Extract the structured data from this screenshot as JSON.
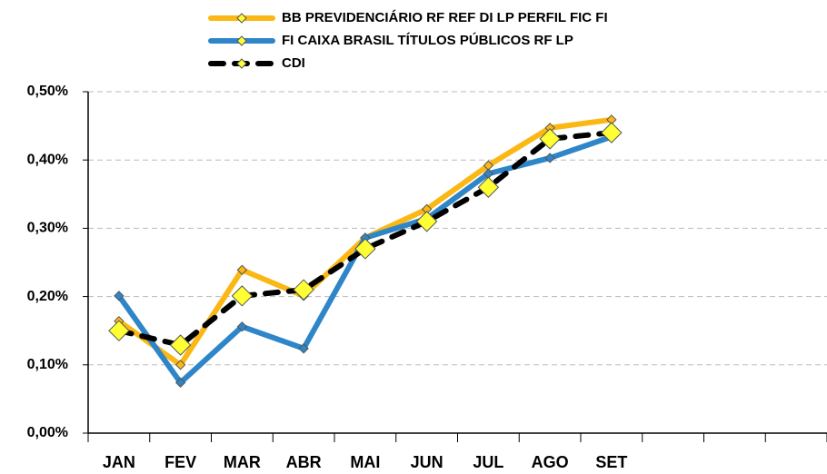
{
  "chart_data": {
    "type": "line",
    "categories": [
      "JAN",
      "FEV",
      "MAR",
      "ABR",
      "MAI",
      "JUN",
      "JUL",
      "AGO",
      "SET",
      null,
      null,
      null
    ],
    "series": [
      {
        "name": "BB PREVIDENCIÁRIO RF REF DI LP PERFIL FIC FI",
        "color": "#fbb714",
        "marker_color": "#fbb714",
        "marker_size": "small",
        "dashed": false,
        "values": [
          0.164,
          0.1,
          0.239,
          0.201,
          0.286,
          0.328,
          0.392,
          0.447,
          0.459,
          null,
          null,
          null
        ]
      },
      {
        "name": "FI CAIXA BRASIL TÍTULOS PÚBLICOS RF LP",
        "color": "#2e86c8",
        "marker_color": "#2e86c8",
        "marker_size": "small",
        "dashed": false,
        "values": [
          0.201,
          0.074,
          0.156,
          0.124,
          0.286,
          0.314,
          0.38,
          0.403,
          0.434,
          null,
          null,
          null
        ]
      },
      {
        "name": "CDI",
        "color": "#000000",
        "marker_color": "#ffff33",
        "marker_size": "large",
        "dashed": true,
        "values": [
          0.15,
          0.129,
          0.201,
          0.21,
          0.27,
          0.31,
          0.36,
          0.431,
          0.44,
          null,
          null,
          null
        ]
      }
    ],
    "ylim": [
      0,
      0.5
    ],
    "yticks": [
      {
        "value": 0,
        "label": "0,00%"
      },
      {
        "value": 0.1,
        "label": "0,10%"
      },
      {
        "value": 0.2,
        "label": "0,20%"
      },
      {
        "value": 0.3,
        "label": "0,30%"
      },
      {
        "value": 0.4,
        "label": "0,40%"
      },
      {
        "value": 0.5,
        "label": "0,50%"
      }
    ],
    "grid": true,
    "legend": "top"
  }
}
